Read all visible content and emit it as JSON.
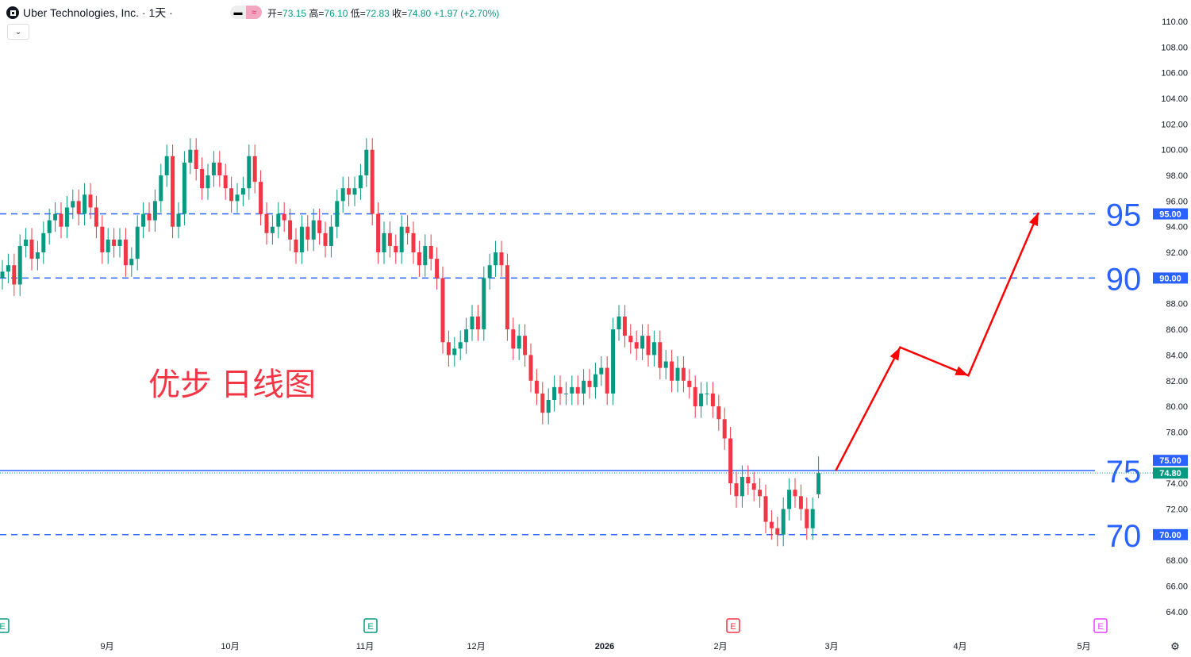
{
  "header": {
    "symbol": "Uber Technologies, Inc. · 1天 ·",
    "open_label": "开=",
    "open": "73.15",
    "high_label": "高=",
    "high": "76.10",
    "low_label": "低=",
    "low": "72.83",
    "close_label": "收=",
    "close": "74.80",
    "change": "+1.97 (+2.70%)",
    "toggle_icon": "approx-icon",
    "dropdown_icon": "chevron-down-icon"
  },
  "annotation_text": "优步 日线图",
  "chart_data": {
    "type": "candlestick",
    "ylim": [
      63,
      111
    ],
    "y_ticks": [
      "110.00",
      "108.00",
      "106.00",
      "104.00",
      "102.00",
      "100.00",
      "98.00",
      "96.00",
      "94.00",
      "92.00",
      "88.00",
      "86.00",
      "84.00",
      "82.00",
      "80.00",
      "78.00",
      "74.00",
      "72.00",
      "68.00",
      "66.00",
      "64.00"
    ],
    "x_ticks": [
      "9月",
      "10月",
      "11月",
      "12月",
      "2026",
      "2月",
      "3月",
      "4月",
      "5月"
    ],
    "closes": [
      90.5,
      91,
      89.5,
      92.5,
      93,
      91.5,
      92,
      93.5,
      94.5,
      95,
      94,
      95.5,
      96,
      95,
      96.5,
      95.5,
      94,
      92,
      93,
      92.5,
      93,
      91,
      91.5,
      94,
      95,
      94.5,
      96,
      98,
      99.5,
      94,
      95,
      99,
      100,
      98.5,
      97,
      98,
      99,
      98,
      97,
      96,
      96.5,
      97,
      99.5,
      97.5,
      95,
      93.5,
      94,
      95,
      94.5,
      93,
      92,
      94,
      93,
      94.5,
      93.5,
      92.5,
      94,
      96,
      97,
      96.5,
      97,
      98,
      100,
      95,
      92,
      93.5,
      92.5,
      92,
      94,
      93.5,
      92,
      91,
      92.5,
      91.5,
      90,
      85,
      84,
      84.5,
      85,
      86,
      87,
      86,
      90,
      91,
      92,
      91,
      86,
      84.5,
      85.5,
      84,
      82,
      81,
      79.5,
      80.5,
      81.5,
      81,
      81,
      81.5,
      81,
      82,
      81.5,
      82.5,
      83,
      81,
      86,
      87,
      85.5,
      85,
      84.5,
      85.5,
      84,
      85,
      83,
      83.5,
      82,
      83,
      82,
      81.5,
      80,
      81,
      81,
      80,
      79,
      77.5,
      74,
      73,
      74.5,
      74,
      73.5,
      73,
      71,
      70.5,
      70,
      72,
      73.5,
      73,
      72,
      70.5,
      72,
      74.8
    ],
    "last_bar": {
      "open": 73.15,
      "high": 76.1,
      "low": 72.83,
      "close": 74.8
    },
    "up_color": "#089981",
    "down_color": "#f23645",
    "levels": [
      {
        "price": 95,
        "style": "dashed",
        "label": "95",
        "axis_label": "95.00"
      },
      {
        "price": 90,
        "style": "dashed",
        "label": "90",
        "axis_label": "90.00"
      },
      {
        "price": 75,
        "style": "solid",
        "label": "75",
        "axis_label": "75.00"
      },
      {
        "price": 70,
        "style": "dashed",
        "label": "70",
        "axis_label": "70.00"
      }
    ],
    "last_price_label": "74.80",
    "level_color": "#2962ff",
    "projection_path": [
      {
        "date": "2026-03-02",
        "price": 75
      },
      {
        "date": "2026-03-17",
        "price": 84.6
      },
      {
        "date": "2026-04-03",
        "price": 82.4
      },
      {
        "date": "2026-04-20",
        "price": 95.1
      }
    ],
    "projection_color": "#ff0000",
    "earnings_markers": [
      {
        "label": "E",
        "color": "#089981"
      },
      {
        "label": "E",
        "color": "#089981"
      },
      {
        "label": "E",
        "color": "#f23645"
      },
      {
        "label": "E",
        "color": "#e040fb"
      }
    ]
  }
}
